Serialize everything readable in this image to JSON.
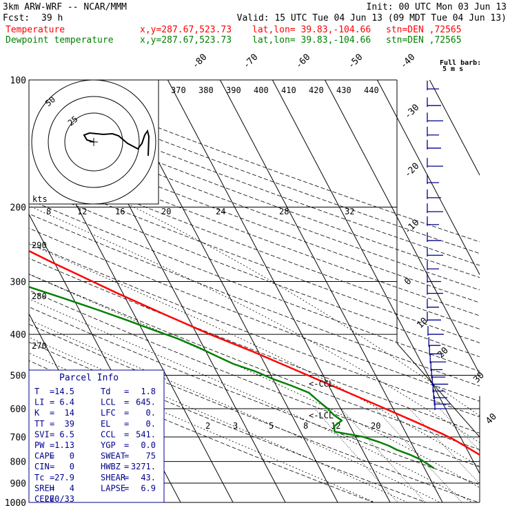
{
  "header": {
    "model": "3km ARW-WRF -- NCAR/MMM",
    "init": "Init: 00 UTC Mon 03 Jun 13",
    "fcst_label": "Fcst:",
    "fcst_value": "39 h",
    "valid": "Valid: 15 UTC Tue 04 Jun 13 (09 MDT Tue 04 Jun 13)"
  },
  "series_info": [
    {
      "label": "Temperature",
      "xy": "x,y=287.67,523.73",
      "latlon": "lat,lon= 39.83,-104.66",
      "stn": "stn=DEN ,72565",
      "color": "#ff0000"
    },
    {
      "label": "Dewpoint temperature",
      "xy": "x,y=287.67,523.73",
      "latlon": "lat,lon= 39.83,-104.66",
      "stn": "stn=DEN ,72565",
      "color": "#008000"
    }
  ],
  "barb_legend": {
    "line1": "Full barb:",
    "line2": "5 m s"
  },
  "hodograph": {
    "units": "kts",
    "ring_labels": [
      "25",
      "50"
    ]
  },
  "cloud_labels": {
    "ccl": "<-CCL",
    "lcl": "<-LCL"
  },
  "parcel_info": {
    "title": "Parcel Info",
    "rows": [
      [
        [
          "T",
          "=",
          "14.5"
        ],
        [
          "Td",
          "=",
          "1.8"
        ]
      ],
      [
        [
          "LI",
          "=",
          "6.4"
        ],
        [
          "LCL",
          "=",
          "645."
        ]
      ],
      [
        [
          "K",
          "=",
          "14"
        ],
        [
          "LFC",
          "=",
          "0."
        ]
      ],
      [
        [
          "TT",
          "=",
          "39"
        ],
        [
          "EL",
          "=",
          "0."
        ]
      ],
      [
        [
          "SVI",
          "=",
          "6.5"
        ],
        [
          "CCL",
          "=",
          "541."
        ]
      ],
      [
        [
          "PW",
          "=",
          "1.13"
        ],
        [
          "YGP",
          "=",
          "0.0"
        ]
      ],
      [
        [
          "CAPE",
          "=",
          "0"
        ],
        [
          "SWEAT",
          "=",
          "75"
        ]
      ],
      [
        [
          "CIN",
          "=",
          "0"
        ],
        [
          "HWBZ",
          "=",
          "3271."
        ]
      ],
      [
        [
          "Tc",
          "=",
          "27.9"
        ],
        [
          "SHEAR",
          "=",
          "43."
        ]
      ],
      [
        [
          "SREH",
          "=",
          "4"
        ],
        [
          "LAPSE",
          "=",
          "6.9"
        ]
      ],
      [
        [
          "CELL",
          "=",
          "270/33"
        ],
        [
          "",
          "",
          ""
        ]
      ]
    ]
  },
  "colors": {
    "temperature": "#ff0000",
    "dewpoint": "#008000",
    "barbs": "#00008b",
    "grid": "#000000"
  },
  "chart_data": {
    "type": "line",
    "title": "",
    "xlabel": "",
    "ylabel": "",
    "y_scale": "log-pressure",
    "ylim": [
      1000,
      100
    ],
    "pressure_ticks": [
      "100",
      "200",
      "300",
      "400",
      "500",
      "600",
      "700",
      "800",
      "900",
      "1000"
    ],
    "isotherm_labels": [
      "-80",
      "-70",
      "-60",
      "-50",
      "-40",
      "-30",
      "-20",
      "-10",
      "0",
      "10",
      "20",
      "30",
      "40"
    ],
    "theta_labels": [
      "370",
      "380",
      "390",
      "400",
      "410",
      "420",
      "430",
      "440"
    ],
    "theta_labels_left": [
      "290",
      "280",
      "270"
    ],
    "mixing_ratio_labels": [
      "2",
      "3",
      "5",
      "8",
      "12",
      "20"
    ],
    "hodo_speed_labels": [
      "8",
      "12",
      "16",
      "20",
      "24",
      "28",
      "32"
    ],
    "grid": true,
    "series": [
      {
        "name": "Temperature",
        "pressure": [
          830,
          815,
          800,
          770,
          740,
          710,
          690,
          665,
          640,
          600,
          560,
          520,
          480,
          440,
          400,
          360,
          320,
          290,
          270,
          250,
          230,
          210,
          195,
          170,
          150,
          130,
          115,
          105
        ],
        "temp": [
          14.5,
          14.0,
          13.5,
          11.8,
          10.2,
          8.5,
          7.0,
          4.8,
          2.5,
          -1.5,
          -5.8,
          -10.5,
          -15.5,
          -21.0,
          -27.5,
          -34.0,
          -41.0,
          -46.5,
          -50.5,
          -54.5,
          -58.0,
          -61.5,
          -64.0,
          -66.0,
          -67.0,
          -67.5,
          -67.5,
          -67.0
        ]
      },
      {
        "name": "Dewpoint temperature",
        "pressure": [
          830,
          810,
          790,
          770,
          750,
          735,
          720,
          700,
          680,
          660,
          640,
          620,
          600,
          575,
          550,
          530,
          510,
          490,
          470,
          450,
          430,
          410,
          390,
          370,
          350,
          330,
          310,
          290,
          270,
          250,
          230,
          210,
          190,
          170,
          150,
          130,
          115,
          105
        ],
        "temp": [
          1.8,
          1.0,
          0.0,
          -1.5,
          -3.5,
          -4.5,
          -6.0,
          -8.5,
          -13.5,
          -13.0,
          -11.0,
          -12.0,
          -12.5,
          -13.5,
          -14.5,
          -17.0,
          -20.0,
          -22.5,
          -26.0,
          -28.5,
          -31.0,
          -34.0,
          -38.0,
          -42.0,
          -46.5,
          -51.5,
          -57.0,
          -62.0,
          -66.5,
          -70.5,
          -74.0,
          -77.0,
          -80.0,
          -82.5,
          -84.5,
          -85.5,
          -86.0,
          -86.5
        ]
      }
    ],
    "wind_barb_pressures": [
      105,
      115,
      125,
      135,
      145,
      160,
      175,
      190,
      205,
      220,
      240,
      260,
      280,
      300,
      320,
      345,
      370,
      400,
      425,
      445,
      465,
      485,
      505,
      525,
      545,
      565,
      585,
      600
    ]
  }
}
